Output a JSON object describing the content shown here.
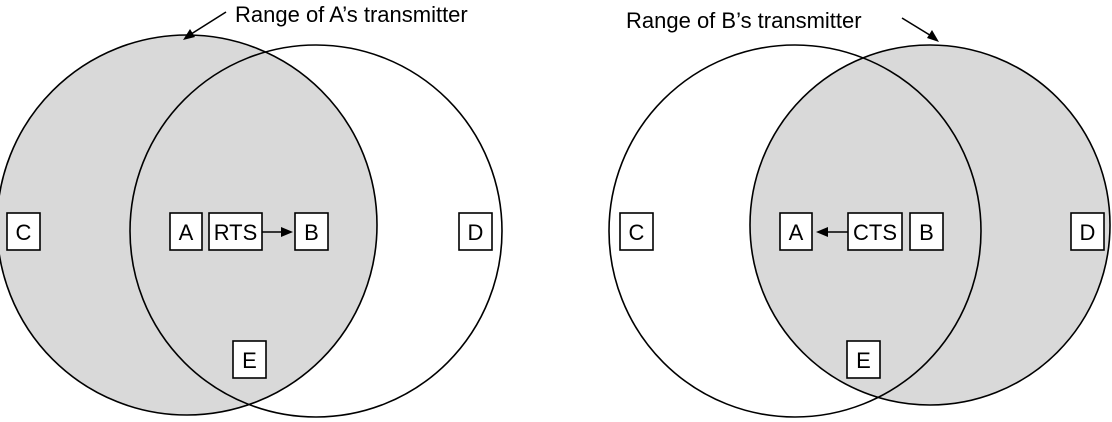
{
  "left_panel": {
    "range_label": "Range of A’s transmitter",
    "nodes": {
      "C": "C",
      "A": "A",
      "B": "B",
      "D": "D",
      "E": "E"
    },
    "message": "RTS",
    "message_direction": "A to B"
  },
  "right_panel": {
    "range_label": "Range of B’s transmitter",
    "nodes": {
      "C": "C",
      "A": "A",
      "B": "B",
      "D": "D",
      "E": "E"
    },
    "message": "CTS",
    "message_direction": "B to A"
  },
  "colors": {
    "shaded_range": "#d9d9d9",
    "line": "#000000",
    "background": "#ffffff"
  }
}
